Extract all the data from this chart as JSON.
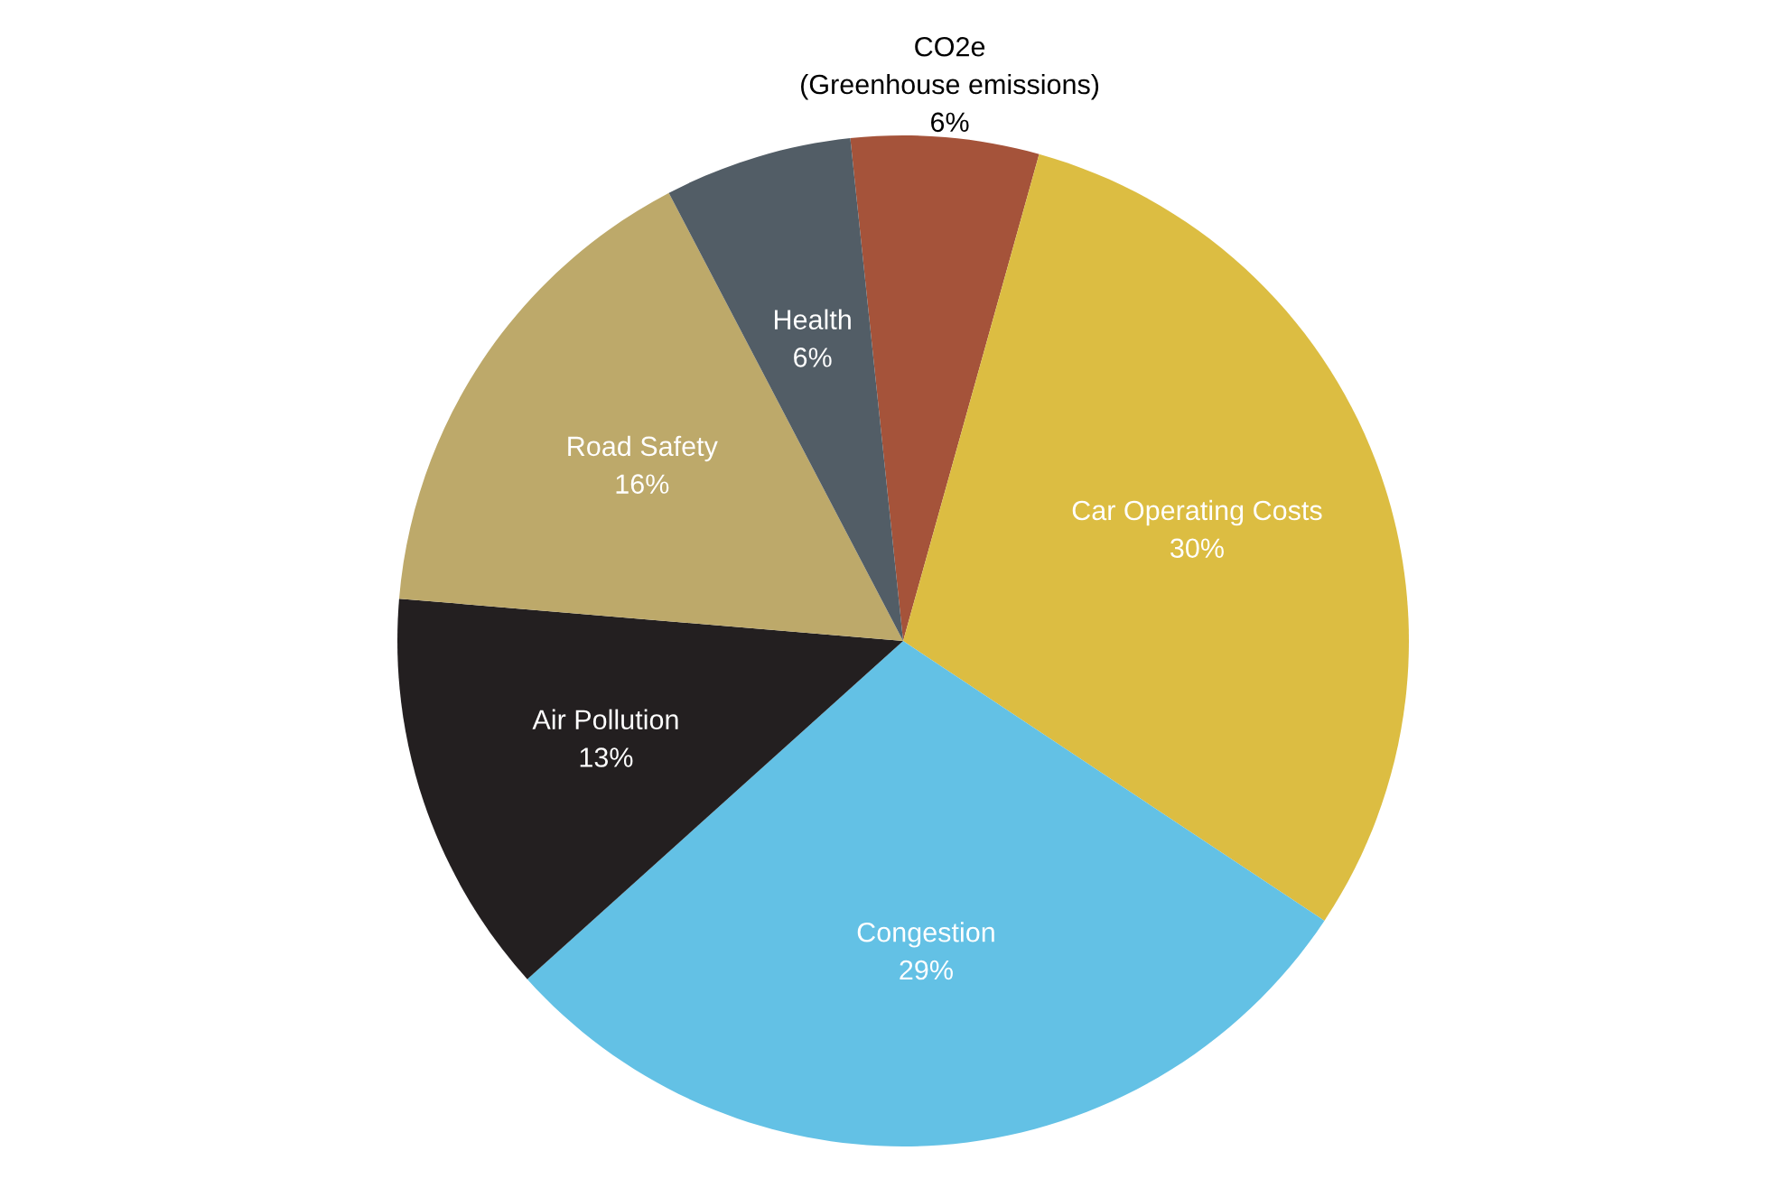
{
  "chart_data": {
    "type": "pie",
    "categories": [
      "CO2e\n(Greenhouse emissions)",
      "Car Operating Costs",
      "Congestion",
      "Air Pollution",
      "Road Safety",
      "Health"
    ],
    "values": [
      6,
      30,
      29,
      13,
      16,
      6
    ],
    "colors": [
      "#a5533a",
      "#dcbd42",
      "#63c1e5",
      "#231f20",
      "#bda96a",
      "#525d66"
    ],
    "value_labels": [
      "6%",
      "30%",
      "29%",
      "13%",
      "16%",
      "6%"
    ],
    "legend": false
  }
}
